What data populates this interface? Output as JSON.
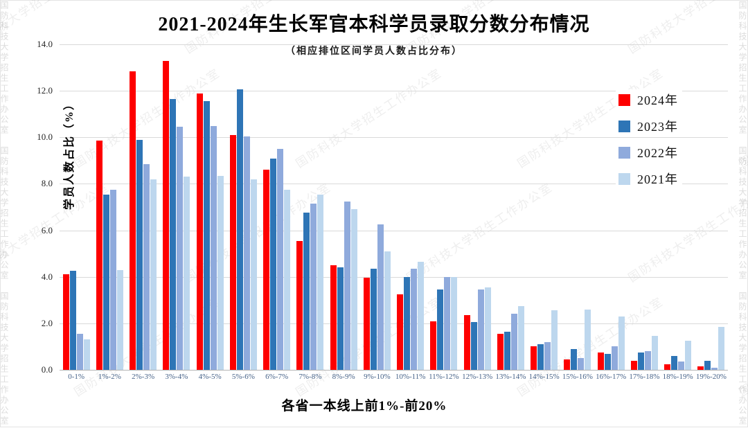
{
  "page": {
    "title": "2021-2024年生长军官本科学员录取分数分布情况",
    "subtitle": "（相应排位区间学员人数占比分布）"
  },
  "watermark": {
    "text": "国防科技大学招生工作办公室"
  },
  "chart_data": {
    "type": "bar",
    "title": "2021-2024年生长军官本科学员录取分数分布情况",
    "subtitle": "（相应排位区间学员人数占比分布）",
    "xlabel": "各省一本线上前1%-前20%",
    "ylabel": "学员人数占比（%）",
    "ylim": [
      0,
      14
    ],
    "ytick_step": 2,
    "grid": true,
    "legend_position": "upper-right",
    "categories": [
      "0-1%",
      "1%-2%",
      "2%-3%",
      "3%-4%",
      "4%-5%",
      "5%-6%",
      "6%-7%",
      "7%-8%",
      "8%-9%",
      "9%-10%",
      "10%-11%",
      "11%-12%",
      "12%-13%",
      "13%-14%",
      "14%-15%",
      "15%-16%",
      "16%-17%",
      "17%-18%",
      "18%-19%",
      "19%-20%"
    ],
    "series": [
      {
        "name": "2024年",
        "color": "#fe0000",
        "values": [
          4.1,
          9.85,
          12.85,
          13.3,
          11.9,
          10.1,
          8.6,
          5.55,
          4.5,
          3.95,
          3.25,
          2.1,
          2.35,
          1.55,
          1.0,
          0.45,
          0.75,
          0.4,
          0.25,
          0.15
        ]
      },
      {
        "name": "2023年",
        "color": "#2e75b6",
        "values": [
          4.25,
          7.55,
          9.9,
          11.65,
          11.55,
          12.05,
          9.1,
          6.75,
          4.4,
          4.35,
          4.0,
          3.45,
          2.05,
          1.65,
          1.1,
          0.9,
          0.7,
          0.75,
          0.6,
          0.4
        ]
      },
      {
        "name": "2022年",
        "color": "#8faadc",
        "values": [
          1.55,
          7.75,
          8.85,
          10.45,
          10.5,
          10.05,
          9.5,
          7.15,
          7.25,
          6.25,
          4.35,
          4.0,
          3.45,
          2.4,
          1.2,
          0.5,
          1.0,
          0.8,
          0.35,
          0.1
        ]
      },
      {
        "name": "2021年",
        "color": "#bdd7ee",
        "values": [
          1.3,
          4.3,
          8.2,
          8.3,
          8.35,
          8.2,
          7.75,
          7.55,
          6.9,
          5.1,
          4.65,
          4.0,
          3.55,
          2.75,
          2.55,
          2.6,
          2.3,
          1.45,
          1.25,
          1.85
        ]
      }
    ]
  }
}
